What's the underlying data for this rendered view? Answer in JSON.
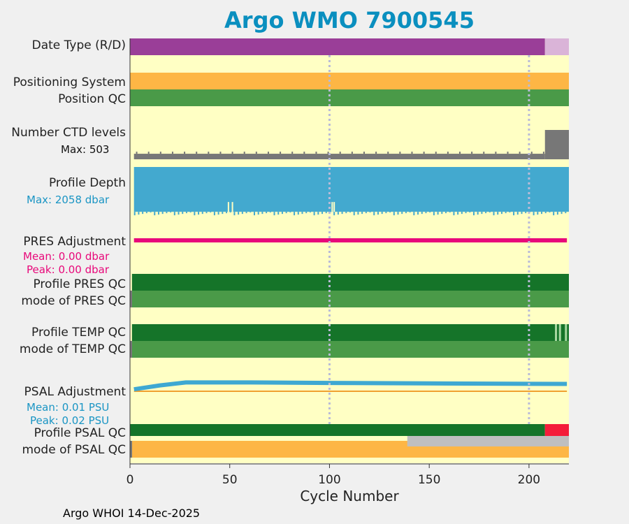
{
  "chart_data": {
    "type": "timeline-panels",
    "title": "Argo WMO 7900545",
    "xlabel": "Cycle Number",
    "xlim": [
      0,
      220
    ],
    "xticks": [
      0,
      50,
      100,
      150,
      200
    ],
    "footer": "Argo WHOI 14-Dec-2025",
    "colors": {
      "panel_bg": "#ffffc4",
      "realtime": "#9a3e98",
      "delayed": "#dab4d8",
      "position_system": "#fdb645",
      "position_qc": "#4a9a48",
      "ctd_levels": "#777777",
      "profile_depth": "#43a9cf",
      "pres_adjustment": "#e8087a",
      "qc_dark": "#157429",
      "qc_light": "#4a9a48",
      "psal_adjustment": "#3ea8d2",
      "psal_bad": "#f41d3a",
      "psal_gray": "#bfbfbf",
      "psal_mode_orange": "#fdb645"
    },
    "rows": {
      "date_type": "Date Type (R/D)",
      "positioning_system": "Positioning System",
      "position_qc": "Position QC",
      "ctd_levels": "Number CTD levels",
      "profile_depth": "Profile Depth",
      "pres_adjustment": "PRES Adjustment",
      "profile_pres_qc": "Profile PRES QC",
      "mode_pres_qc": "mode of PRES QC",
      "profile_temp_qc": "Profile TEMP QC",
      "mode_temp_qc": "mode of TEMP QC",
      "psal_adjustment": "PSAL Adjustment",
      "profile_psal_qc": "Profile PSAL QC",
      "mode_psal_qc": "mode of PSAL QC"
    },
    "annotations": {
      "ctd_max": "Max: 503",
      "depth_max": "Max: 2058 dbar",
      "pres_mean": "Mean: 0.00 dbar",
      "pres_peak": "Peak: 0.00 dbar",
      "psal_mean": "Mean: 0.01 PSU",
      "psal_peak": "Peak: 0.02 PSU"
    },
    "date_type_segments": [
      {
        "from": 0,
        "to": 208,
        "mode": "R"
      },
      {
        "from": 208,
        "to": 220,
        "mode": "D"
      }
    ],
    "ctd_levels": {
      "max": 503,
      "low_value": 95,
      "high_from_cycle": 208,
      "high_value": 503
    },
    "profile_depth": {
      "max_dbar": 2058,
      "typical_dbar": 2000,
      "spike_cycles": [
        49,
        51,
        101,
        102
      ]
    },
    "pres_adjustment": {
      "mean": 0.0,
      "peak": 0.0,
      "from": 2,
      "to": 219
    },
    "temp_qc_light_cycles": [
      213,
      215,
      218
    ],
    "psal_adjustment": {
      "mean": 0.01,
      "peak": 0.02,
      "points": [
        [
          2,
          0.004
        ],
        [
          15,
          0.012
        ],
        [
          28,
          0.018
        ],
        [
          60,
          0.018
        ],
        [
          100,
          0.017
        ],
        [
          150,
          0.016
        ],
        [
          219,
          0.015
        ]
      ]
    },
    "psal_qc": {
      "bad_from": 208,
      "mode_gray_from": 139
    }
  }
}
